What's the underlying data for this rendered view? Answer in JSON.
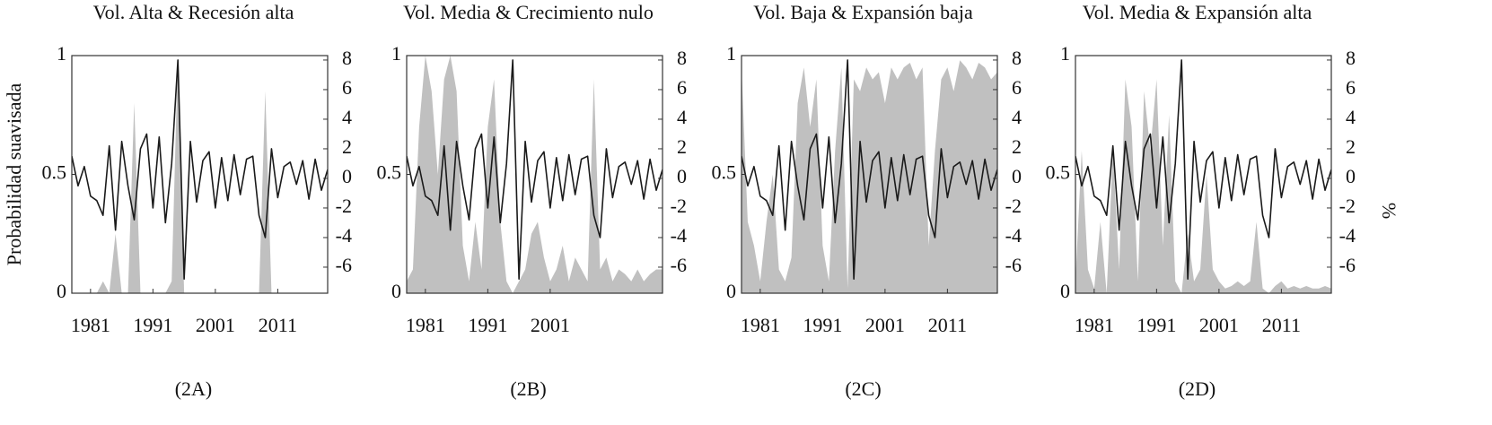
{
  "chart_data": [
    {
      "type": "area-line",
      "title": "Vol. Alta & Recesión alta",
      "caption": "(2A)",
      "ylabel": "Probabilidad suavisada",
      "x": [
        1978,
        1979,
        1980,
        1981,
        1982,
        1983,
        1984,
        1985,
        1986,
        1987,
        1988,
        1989,
        1990,
        1991,
        1992,
        1993,
        1994,
        1995,
        1996,
        1997,
        1998,
        1999,
        2000,
        2001,
        2002,
        2003,
        2004,
        2005,
        2006,
        2007,
        2008,
        2009,
        2010,
        2011,
        2012,
        2013,
        2014,
        2015,
        2016,
        2017,
        2018,
        2019
      ],
      "series": [
        {
          "color": "#c0c0c0",
          "values": [
            0,
            0,
            0,
            0,
            0,
            0.05,
            0,
            0.25,
            0,
            0,
            0.8,
            0,
            0,
            0,
            0,
            0,
            0.05,
            1.0,
            0,
            0,
            0,
            0,
            0,
            0,
            0,
            0,
            0,
            0,
            0,
            0,
            0,
            0.85,
            0,
            0,
            0,
            0,
            0,
            0,
            0,
            0,
            0,
            0
          ]
        },
        {
          "color": "#1a1a1a",
          "axis": "y2",
          "values": [
            1.5,
            -0.5,
            0.8,
            -1.2,
            -1.5,
            -2.5,
            2.2,
            -3.5,
            2.5,
            -0.5,
            -2.8,
            2.0,
            3.0,
            -2.0,
            2.8,
            -3.0,
            1.0,
            8.0,
            -6.8,
            2.5,
            -1.6,
            1.2,
            1.8,
            -2.0,
            1.4,
            -1.5,
            1.6,
            -1.1,
            1.3,
            1.5,
            -2.5,
            -4.0,
            2.0,
            -1.3,
            0.8,
            1.1,
            -0.4,
            1.2,
            -1.4,
            1.3,
            -0.8,
            0.6
          ]
        }
      ],
      "xlim": [
        1978,
        2019
      ],
      "xticks": [
        1981,
        1991,
        2001,
        2011
      ],
      "ylim": [
        0,
        1
      ],
      "yticks": [
        0,
        0.5,
        1
      ],
      "y2lim": [
        -7.76,
        8.3
      ],
      "y2ticks": [
        -6,
        -4,
        -2,
        0,
        2,
        4,
        6,
        8
      ]
    },
    {
      "type": "area-line",
      "title": "Vol. Media & Crecimiento nulo",
      "caption": "(2B)",
      "x": [
        1978,
        1979,
        1980,
        1981,
        1982,
        1983,
        1984,
        1985,
        1986,
        1987,
        1988,
        1989,
        1990,
        1991,
        1992,
        1993,
        1994,
        1995,
        1996,
        1997,
        1998,
        1999,
        2000,
        2001,
        2002,
        2003,
        2004,
        2005,
        2006,
        2007,
        2008,
        2009,
        2010,
        2011,
        2012,
        2013,
        2014,
        2015,
        2016,
        2017,
        2018,
        2019
      ],
      "series": [
        {
          "color": "#c0c0c0",
          "values": [
            0.05,
            0.1,
            0.7,
            1.0,
            0.85,
            0.5,
            0.9,
            1.0,
            0.85,
            0.2,
            0.05,
            0.3,
            0.1,
            0.7,
            0.9,
            0.3,
            0.05,
            0,
            0.05,
            0.1,
            0.25,
            0.3,
            0.15,
            0.05,
            0.1,
            0.2,
            0.05,
            0.15,
            0.1,
            0.05,
            0.9,
            0.1,
            0.15,
            0.05,
            0.1,
            0.08,
            0.05,
            0.1,
            0.05,
            0.08,
            0.1,
            0.1
          ]
        },
        {
          "color": "#1a1a1a",
          "axis": "y2",
          "values": [
            1.5,
            -0.5,
            0.8,
            -1.2,
            -1.5,
            -2.5,
            2.2,
            -3.5,
            2.5,
            -0.5,
            -2.8,
            2.0,
            3.0,
            -2.0,
            2.8,
            -3.0,
            1.0,
            8.0,
            -6.8,
            2.5,
            -1.6,
            1.2,
            1.8,
            -2.0,
            1.4,
            -1.5,
            1.6,
            -1.1,
            1.3,
            1.5,
            -2.5,
            -4.0,
            2.0,
            -1.3,
            0.8,
            1.1,
            -0.4,
            1.2,
            -1.4,
            1.3,
            -0.8,
            0.6
          ]
        }
      ],
      "xlim": [
        1978,
        2019
      ],
      "xticks": [
        1981,
        1991,
        2001
      ],
      "ylim": [
        0,
        1
      ],
      "yticks": [
        0,
        0.5,
        1
      ],
      "y2lim": [
        -7.76,
        8.3
      ],
      "y2ticks": [
        -6,
        -4,
        -2,
        0,
        2,
        4,
        6,
        8
      ]
    },
    {
      "type": "area-line",
      "title": "Vol. Baja & Expansión baja",
      "caption": "(2C)",
      "x": [
        1978,
        1979,
        1980,
        1981,
        1982,
        1983,
        1984,
        1985,
        1986,
        1987,
        1988,
        1989,
        1990,
        1991,
        1992,
        1993,
        1994,
        1995,
        1996,
        1997,
        1998,
        1999,
        2000,
        2001,
        2002,
        2003,
        2004,
        2005,
        2006,
        2007,
        2008,
        2009,
        2010,
        2011,
        2012,
        2013,
        2014,
        2015,
        2016,
        2017,
        2018,
        2019
      ],
      "series": [
        {
          "color": "#c0c0c0",
          "values": [
            0.95,
            0.3,
            0.2,
            0.05,
            0.3,
            0.5,
            0.1,
            0.05,
            0.15,
            0.8,
            0.95,
            0.7,
            0.9,
            0.2,
            0.05,
            0.6,
            0.95,
            0.02,
            0.9,
            0.85,
            0.95,
            0.9,
            0.93,
            0.8,
            0.95,
            0.9,
            0.95,
            0.97,
            0.9,
            0.95,
            0.2,
            0.6,
            0.9,
            0.95,
            0.85,
            0.98,
            0.95,
            0.9,
            0.97,
            0.95,
            0.9,
            0.93
          ]
        },
        {
          "color": "#1a1a1a",
          "axis": "y2",
          "values": [
            1.5,
            -0.5,
            0.8,
            -1.2,
            -1.5,
            -2.5,
            2.2,
            -3.5,
            2.5,
            -0.5,
            -2.8,
            2.0,
            3.0,
            -2.0,
            2.8,
            -3.0,
            1.0,
            8.0,
            -6.8,
            2.5,
            -1.6,
            1.2,
            1.8,
            -2.0,
            1.4,
            -1.5,
            1.6,
            -1.1,
            1.3,
            1.5,
            -2.5,
            -4.0,
            2.0,
            -1.3,
            0.8,
            1.1,
            -0.4,
            1.2,
            -1.4,
            1.3,
            -0.8,
            0.6
          ]
        }
      ],
      "xlim": [
        1978,
        2019
      ],
      "xticks": [
        1981,
        1991,
        2001,
        2011
      ],
      "ylim": [
        0,
        1
      ],
      "yticks": [
        0,
        0.5,
        1
      ],
      "y2lim": [
        -7.76,
        8.3
      ],
      "y2ticks": [
        -6,
        -4,
        -2,
        0,
        2,
        4,
        6,
        8
      ]
    },
    {
      "type": "area-line",
      "title": "Vol. Media & Expansión alta",
      "caption": "(2D)",
      "y2label": "%",
      "x": [
        1978,
        1979,
        1980,
        1981,
        1982,
        1983,
        1984,
        1985,
        1986,
        1987,
        1988,
        1989,
        1990,
        1991,
        1992,
        1993,
        1994,
        1995,
        1996,
        1997,
        1998,
        1999,
        2000,
        2001,
        2002,
        2003,
        2004,
        2005,
        2006,
        2007,
        2008,
        2009,
        2010,
        2011,
        2012,
        2013,
        2014,
        2015,
        2016,
        2017,
        2018,
        2019
      ],
      "series": [
        {
          "color": "#c0c0c0",
          "values": [
            0.05,
            0.6,
            0.1,
            0.02,
            0.3,
            0,
            0.6,
            0.1,
            0.9,
            0.7,
            0.05,
            0.85,
            0.6,
            0.9,
            0.2,
            0.75,
            0.05,
            0,
            0.25,
            0.05,
            0.1,
            0.5,
            0.1,
            0.05,
            0.02,
            0.03,
            0.05,
            0.03,
            0.05,
            0.3,
            0.02,
            0,
            0.03,
            0.05,
            0.02,
            0.03,
            0.02,
            0.03,
            0.02,
            0.02,
            0.03,
            0.02
          ]
        },
        {
          "color": "#1a1a1a",
          "axis": "y2",
          "values": [
            1.5,
            -0.5,
            0.8,
            -1.2,
            -1.5,
            -2.5,
            2.2,
            -3.5,
            2.5,
            -0.5,
            -2.8,
            2.0,
            3.0,
            -2.0,
            2.8,
            -3.0,
            1.0,
            8.0,
            -6.8,
            2.5,
            -1.6,
            1.2,
            1.8,
            -2.0,
            1.4,
            -1.5,
            1.6,
            -1.1,
            1.3,
            1.5,
            -2.5,
            -4.0,
            2.0,
            -1.3,
            0.8,
            1.1,
            -0.4,
            1.2,
            -1.4,
            1.3,
            -0.8,
            0.6
          ]
        }
      ],
      "xlim": [
        1978,
        2019
      ],
      "xticks": [
        1981,
        1991,
        2001,
        2011
      ],
      "ylim": [
        0,
        1
      ],
      "yticks": [
        0,
        0.5,
        1
      ],
      "y2lim": [
        -7.76,
        8.3
      ],
      "y2ticks": [
        -6,
        -4,
        -2,
        0,
        2,
        4,
        6,
        8
      ]
    }
  ]
}
